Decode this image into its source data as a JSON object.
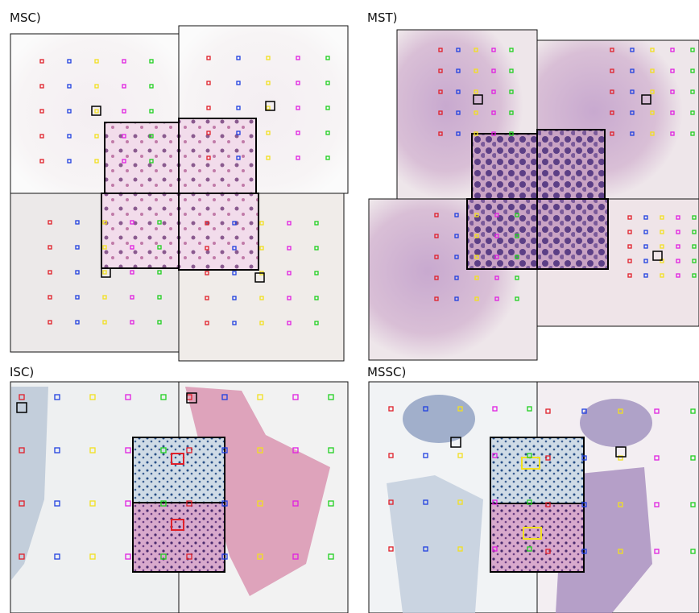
{
  "panels": [
    {
      "label": "MSC)"
    },
    {
      "label": "MST)"
    },
    {
      "label": "ISC)"
    },
    {
      "label": "MSSC)"
    }
  ]
}
